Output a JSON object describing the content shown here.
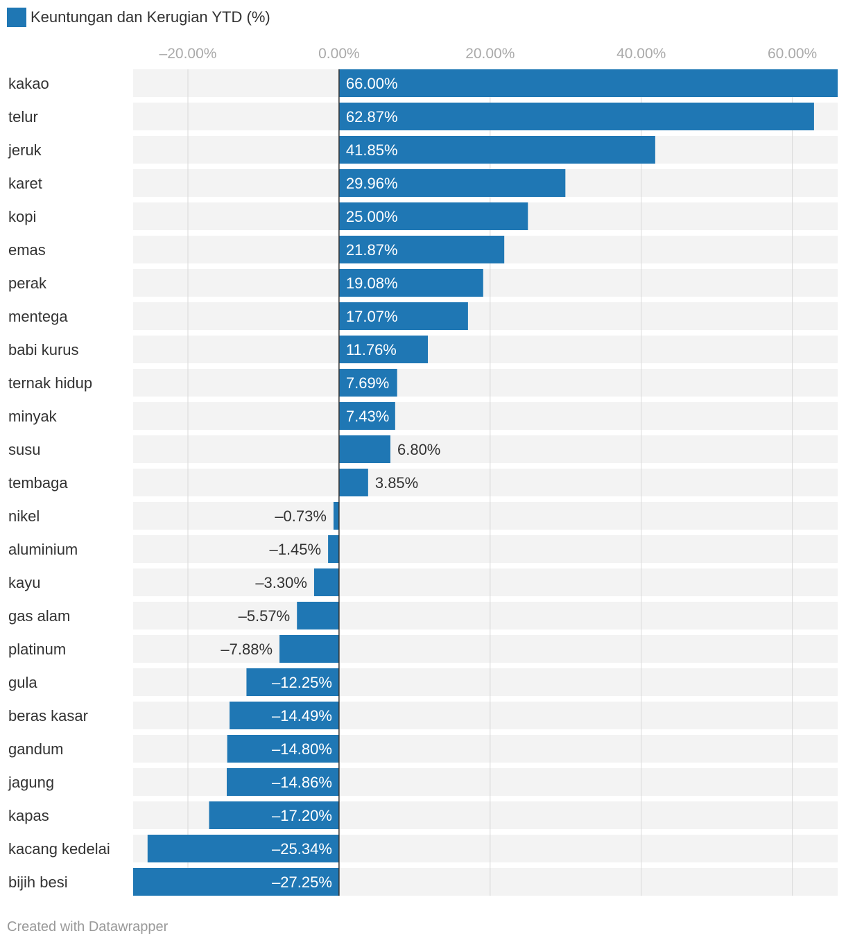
{
  "colors": {
    "bar": "#1f77b4",
    "track": "#f3f3f3",
    "grid": "#d9d9d9",
    "zero": "#333333",
    "tick": "#aaaaaa",
    "label_dark": "#333333",
    "label_light": "#ffffff"
  },
  "chart_data": {
    "type": "bar",
    "orientation": "horizontal",
    "legend": [
      "Keuntungan dan Kerugian YTD (%)"
    ],
    "xlim": [
      -27.25,
      66
    ],
    "x_ticks": [
      {
        "value": -20,
        "label": "–20.00%"
      },
      {
        "value": 0,
        "label": "0.00%"
      },
      {
        "value": 20,
        "label": "20.00%"
      },
      {
        "value": 40,
        "label": "40.00%"
      },
      {
        "value": 60,
        "label": "60.00%"
      }
    ],
    "categories": [
      "kakao",
      "telur",
      "jeruk",
      "karet",
      "kopi",
      "emas",
      "perak",
      "mentega",
      "babi kurus",
      "ternak hidup",
      "minyak",
      "susu",
      "tembaga",
      "nikel",
      "aluminium",
      "kayu",
      "gas alam",
      "platinum",
      "gula",
      "beras kasar",
      "gandum",
      "jagung",
      "kapas",
      "kacang kedelai",
      "bijih besi"
    ],
    "values": [
      66.0,
      62.87,
      41.85,
      29.96,
      25.0,
      21.87,
      19.08,
      17.07,
      11.76,
      7.69,
      7.43,
      6.8,
      3.85,
      -0.73,
      -1.45,
      -3.3,
      -5.57,
      -7.88,
      -12.25,
      -14.49,
      -14.8,
      -14.86,
      -17.2,
      -25.34,
      -27.25
    ],
    "value_labels": [
      "66.00%",
      "62.87%",
      "41.85%",
      "29.96%",
      "25.00%",
      "21.87%",
      "19.08%",
      "17.07%",
      "11.76%",
      "7.69%",
      "7.43%",
      "6.80%",
      "3.85%",
      "–0.73%",
      "–1.45%",
      "–3.30%",
      "–5.57%",
      "–7.88%",
      "–12.25%",
      "–14.49%",
      "–14.80%",
      "–14.86%",
      "–17.20%",
      "–25.34%",
      "–27.25%"
    ]
  },
  "footer": {
    "credit": "Created with Datawrapper"
  }
}
